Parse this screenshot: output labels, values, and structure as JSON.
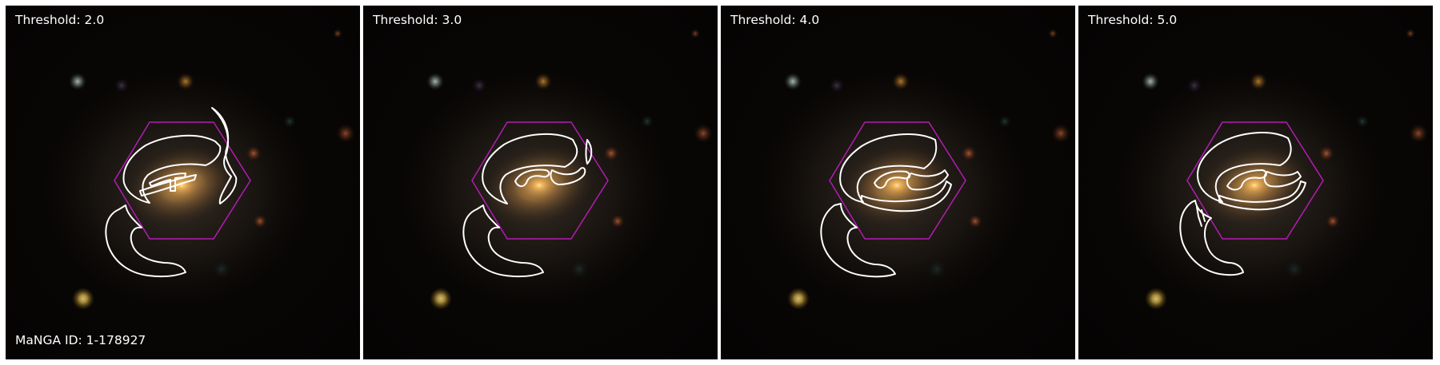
{
  "figure": {
    "galaxy_id_label": "MaNGA ID: 1-178927",
    "panels": [
      {
        "threshold_label": "Threshold: 2.0"
      },
      {
        "threshold_label": "Threshold: 3.0"
      },
      {
        "threshold_label": "Threshold: 4.0"
      },
      {
        "threshold_label": "Threshold: 5.0"
      }
    ]
  },
  "colors": {
    "hexagon": "#b31cb3",
    "contour": "#ffffff",
    "label_text": "#ffffff",
    "sky_background": "#050403",
    "galaxy_core": "#ffd27a"
  }
}
